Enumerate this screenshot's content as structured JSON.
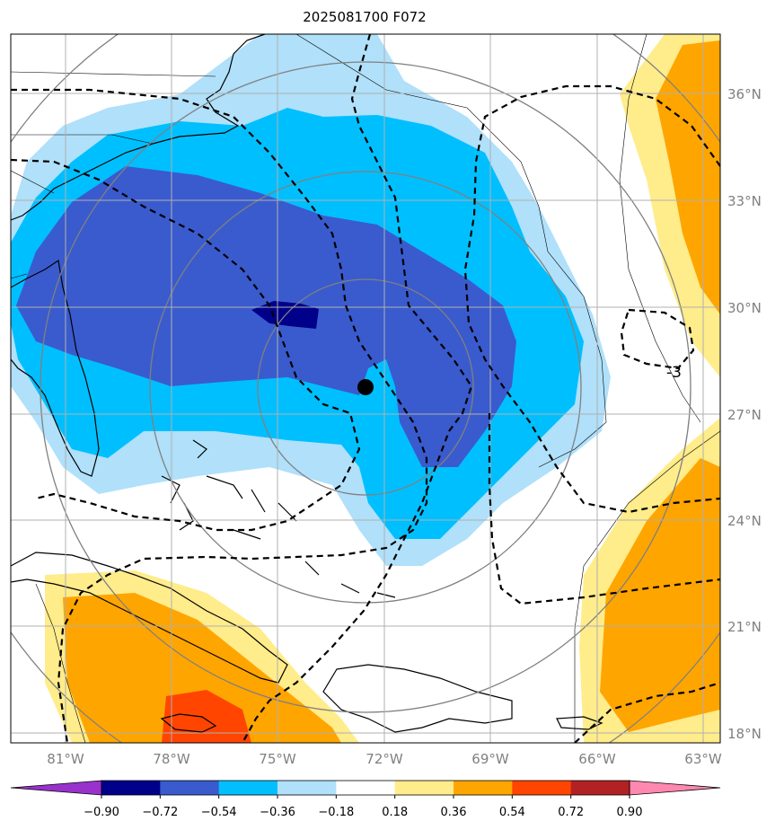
{
  "title": "2025081700 F072",
  "lat_labels": [
    "36°N",
    "33°N",
    "30°N",
    "27°N",
    "24°N",
    "21°N",
    "18°N"
  ],
  "lon_labels": [
    "81°W",
    "78°W",
    "75°W",
    "72°W",
    "69°W",
    "66°W",
    "63°W"
  ],
  "contour_label": "-3",
  "storm_marker": {
    "lon": "72.8W",
    "lat": "27.7N"
  },
  "colorbar": {
    "ticks": [
      "−0.90",
      "−0.72",
      "−0.54",
      "−0.36",
      "−0.18",
      "0.18",
      "0.36",
      "0.54",
      "0.72",
      "0.90"
    ],
    "colors": [
      "#9932cc",
      "#00008b",
      "#3a5bcd",
      "#00bfff",
      "#b0e0fa",
      "#ffffff",
      "#ffec8b",
      "#ffa500",
      "#ff4500",
      "#b22222",
      "#ff88b0"
    ]
  }
}
